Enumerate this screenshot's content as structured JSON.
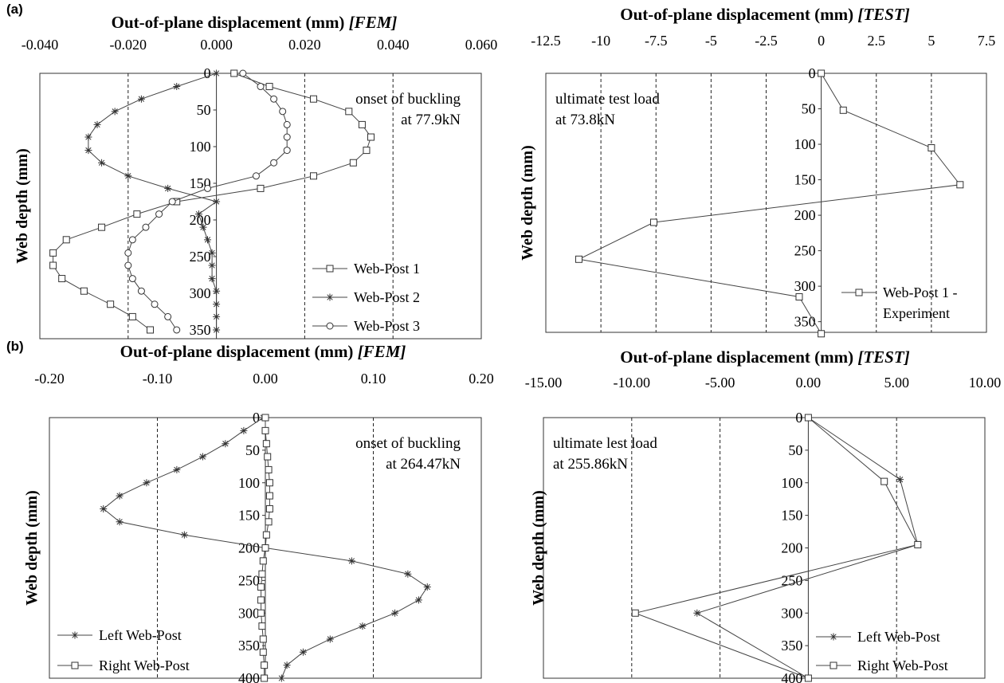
{
  "panels": {
    "a": "(a)",
    "b": "(b)"
  },
  "chart_data": [
    {
      "type": "line",
      "panel": "(a)",
      "title": "Out-of-plane displacement (mm) ",
      "title_tag": "[FEM]",
      "ylabel": "Web depth (mm)",
      "xlim": [
        -0.04,
        0.06
      ],
      "ylim": [
        0,
        350
      ],
      "y_extent": 362,
      "x_ticks": [
        -0.04,
        -0.02,
        0,
        0.02,
        0.04,
        0.06
      ],
      "x_tick_labels": [
        "-0.040",
        "-0.020",
        "0.000",
        "0.020",
        "0.040",
        "0.060"
      ],
      "y_ticks": [
        0,
        50,
        100,
        150,
        200,
        250,
        300,
        350
      ],
      "y_tick_labels": [
        "0",
        "50",
        "100",
        "150",
        "200",
        "250",
        "300",
        "350"
      ],
      "grid_x": [
        -0.02,
        0.02,
        0.04
      ],
      "annotation": [
        "onset of buckling",
        "at 77.9kN"
      ],
      "annotation_align": "right",
      "legend_position": "bottom-right",
      "series": [
        {
          "name": "Web-Post 1",
          "marker": "square",
          "x": [
            0.004,
            0.012,
            0.022,
            0.03,
            0.033,
            0.035,
            0.034,
            0.031,
            0.022,
            0.01,
            -0.009,
            -0.018,
            -0.026,
            -0.034,
            -0.037,
            -0.037,
            -0.035,
            -0.03,
            -0.024,
            -0.019,
            -0.015
          ],
          "y": [
            0,
            18,
            35,
            52,
            70,
            87,
            105,
            122,
            140,
            157,
            175,
            192,
            210,
            227,
            245,
            262,
            280,
            297,
            315,
            332,
            350
          ]
        },
        {
          "name": "Web-Post 2",
          "marker": "star",
          "x": [
            0,
            -0.009,
            -0.017,
            -0.023,
            -0.027,
            -0.029,
            -0.029,
            -0.026,
            -0.02,
            -0.011,
            0,
            -0.004,
            -0.003,
            -0.002,
            -0.001,
            -0.001,
            -0.001,
            0,
            0,
            0,
            0
          ],
          "y": [
            0,
            18,
            35,
            52,
            70,
            87,
            105,
            122,
            140,
            157,
            175,
            192,
            210,
            227,
            245,
            262,
            280,
            297,
            315,
            332,
            350
          ]
        },
        {
          "name": "Web-Post 3",
          "marker": "circle",
          "x": [
            0.006,
            0.01,
            0.013,
            0.015,
            0.016,
            0.016,
            0.016,
            0.013,
            0.009,
            -0.002,
            -0.01,
            -0.013,
            -0.016,
            -0.019,
            -0.02,
            -0.02,
            -0.019,
            -0.017,
            -0.014,
            -0.011,
            -0.009
          ],
          "y": [
            0,
            18,
            35,
            52,
            70,
            87,
            105,
            122,
            140,
            157,
            175,
            192,
            210,
            227,
            245,
            262,
            280,
            297,
            315,
            332,
            350
          ]
        }
      ]
    },
    {
      "type": "line",
      "panel": "",
      "title": "Out-of-plane displacement (mm) ",
      "title_tag": "[TEST]",
      "ylabel": "Web depth (mm)",
      "xlim": [
        -12.5,
        7.5
      ],
      "ylim": [
        0,
        350
      ],
      "y_extent": 365,
      "x_ticks": [
        -12.5,
        -10,
        -7.5,
        -5,
        -2.5,
        0,
        2.5,
        5,
        7.5
      ],
      "x_tick_labels": [
        "-12.5",
        "-10",
        "-7.5",
        "-5",
        "-2.5",
        "0",
        "2.5",
        "5",
        "7.5"
      ],
      "y_ticks": [
        0,
        50,
        100,
        150,
        200,
        250,
        300,
        350
      ],
      "y_tick_labels": [
        "0",
        "50",
        "100",
        "150",
        "200",
        "250",
        "300",
        "350"
      ],
      "grid_x": [
        -10,
        -7.5,
        -5,
        -2.5,
        2.5,
        5
      ],
      "annotation": [
        "ultimate test load",
        "at 73.8kN"
      ],
      "annotation_align": "left",
      "legend_position": "bottom-right",
      "series": [
        {
          "name": "Web-Post 1 - Experiment",
          "marker": "square",
          "legend_lines": [
            "Web-Post 1 -",
            "Experiment"
          ],
          "x": [
            0,
            1,
            5,
            6.3,
            -7.6,
            -11,
            -1,
            0
          ],
          "y": [
            0,
            52,
            105,
            157,
            210,
            262,
            315,
            367
          ]
        }
      ]
    },
    {
      "type": "line",
      "panel": "(b)",
      "title": "Out-of-plane displacement (mm) ",
      "title_tag": "[FEM]",
      "ylabel": "Web depth (mm)",
      "xlim": [
        -0.2,
        0.2
      ],
      "ylim": [
        0,
        400
      ],
      "y_extent": 400,
      "x_ticks": [
        -0.2,
        -0.1,
        0,
        0.1,
        0.2
      ],
      "x_tick_labels": [
        "-0.20",
        "-0.10",
        "0.00",
        "0.10",
        "0.20"
      ],
      "y_ticks": [
        0,
        50,
        100,
        150,
        200,
        250,
        300,
        350,
        400
      ],
      "y_tick_labels": [
        "0",
        "50",
        "100",
        "150",
        "200",
        "250",
        "300",
        "350",
        "400"
      ],
      "grid_x": [
        -0.1,
        0.1
      ],
      "annotation": [
        "onset of buckling",
        "at 264.47kN"
      ],
      "annotation_align": "right",
      "legend_position": "bottom-left",
      "series": [
        {
          "name": "Left Web-Post",
          "marker": "star",
          "x": [
            -0.002,
            -0.02,
            -0.037,
            -0.058,
            -0.082,
            -0.11,
            -0.135,
            -0.15,
            -0.135,
            -0.075,
            0,
            0.08,
            0.132,
            0.15,
            0.142,
            0.12,
            0.09,
            0.06,
            0.035,
            0.02,
            0.015
          ],
          "y": [
            0,
            20,
            40,
            60,
            80,
            100,
            120,
            140,
            160,
            180,
            200,
            220,
            240,
            260,
            280,
            300,
            320,
            340,
            360,
            380,
            400
          ]
        },
        {
          "name": "Right Web-Post",
          "marker": "square",
          "x": [
            0,
            0,
            0.001,
            0.002,
            0.003,
            0.004,
            0.004,
            0.004,
            0.003,
            0.001,
            0,
            -0.002,
            -0.003,
            -0.004,
            -0.004,
            -0.004,
            -0.003,
            -0.002,
            -0.002,
            -0.001,
            -0.001
          ],
          "y": [
            0,
            20,
            40,
            60,
            80,
            100,
            120,
            140,
            160,
            180,
            200,
            220,
            240,
            260,
            280,
            300,
            320,
            340,
            360,
            380,
            400
          ]
        }
      ]
    },
    {
      "type": "line",
      "panel": "",
      "title": "Out-of-plane displacement (mm) ",
      "title_tag": "[TEST]",
      "ylabel": "Web depth (mm)",
      "xlim": [
        -15,
        10
      ],
      "ylim": [
        0,
        400
      ],
      "y_extent": 400,
      "x_ticks": [
        -15,
        -10,
        -5,
        0,
        5,
        10
      ],
      "x_tick_labels": [
        "-15.00",
        "-10.00",
        "-5.00",
        "0.00",
        "5.00",
        "10.00"
      ],
      "y_ticks": [
        0,
        50,
        100,
        150,
        200,
        250,
        300,
        350,
        400
      ],
      "y_tick_labels": [
        "0",
        "50",
        "100",
        "150",
        "200",
        "250",
        "300",
        "350",
        "400"
      ],
      "grid_x": [
        -10,
        -5,
        5
      ],
      "annotation": [
        "ultimate lest load",
        "at 255.86kN"
      ],
      "annotation_align": "left",
      "legend_position": "bottom-right",
      "series": [
        {
          "name": "Left Web-Post",
          "marker": "star",
          "x": [
            0,
            5.2,
            6.2,
            -6.3,
            0
          ],
          "y": [
            0,
            95,
            195,
            300,
            400
          ]
        },
        {
          "name": "Right Web-Post",
          "marker": "square",
          "x": [
            0,
            4.3,
            6.2,
            -9.8,
            0
          ],
          "y": [
            0,
            98,
            195,
            300,
            400
          ]
        }
      ]
    }
  ]
}
